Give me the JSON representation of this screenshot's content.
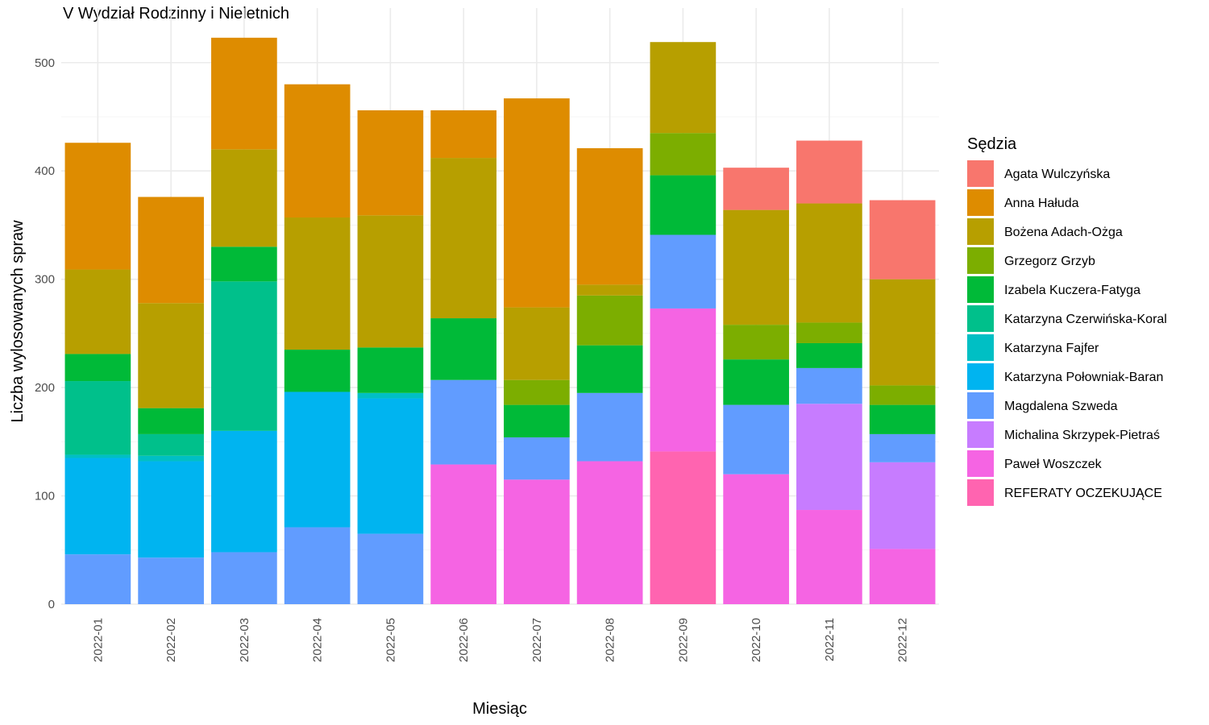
{
  "chart_data": {
    "type": "bar",
    "stacked": true,
    "title": "V Wydział Rodzinny i Nieletnich",
    "xlabel": "Miesiąc",
    "ylabel": "Liczba wylosowanych spraw",
    "ylim": [
      0,
      540
    ],
    "yticks": [
      0,
      100,
      200,
      300,
      400,
      500
    ],
    "grid": true,
    "legend_position": "right",
    "legend_title": "Sędzia",
    "categories": [
      "2022-01",
      "2022-02",
      "2022-03",
      "2022-04",
      "2022-05",
      "2022-06",
      "2022-07",
      "2022-08",
      "2022-09",
      "2022-10",
      "2022-11",
      "2022-12"
    ],
    "series": [
      {
        "name": "Agata Wulczyńska",
        "color": "#F8766D",
        "values": [
          0,
          0,
          0,
          0,
          0,
          0,
          0,
          0,
          0,
          39,
          58,
          73
        ]
      },
      {
        "name": "Anna Hałuda",
        "color": "#DE8C00",
        "values": [
          117,
          98,
          103,
          123,
          97,
          44,
          193,
          126,
          0,
          0,
          0,
          0
        ]
      },
      {
        "name": "Bożena Adach-Ożga",
        "color": "#B79F00",
        "values": [
          78,
          97,
          90,
          122,
          122,
          148,
          67,
          10,
          84,
          106,
          110,
          98
        ]
      },
      {
        "name": "Grzegorz Grzyb",
        "color": "#7CAE00",
        "values": [
          0,
          0,
          0,
          0,
          0,
          0,
          23,
          46,
          39,
          32,
          19,
          18
        ]
      },
      {
        "name": "Izabela Kuczera-Fatyga",
        "color": "#00BA38",
        "values": [
          25,
          24,
          32,
          39,
          42,
          57,
          30,
          44,
          55,
          42,
          23,
          27
        ]
      },
      {
        "name": "Katarzyna Czerwińska-Koral",
        "color": "#00C08B",
        "values": [
          68,
          20,
          138,
          0,
          0,
          0,
          0,
          0,
          0,
          0,
          0,
          0
        ]
      },
      {
        "name": "Katarzyna Fajfer",
        "color": "#00BFC4",
        "values": [
          3,
          5,
          0,
          0,
          5,
          0,
          0,
          0,
          0,
          0,
          0,
          0
        ]
      },
      {
        "name": "Katarzyna Połowniak-Baran",
        "color": "#00B4F0",
        "values": [
          89,
          89,
          112,
          125,
          125,
          0,
          0,
          0,
          0,
          0,
          0,
          0
        ]
      },
      {
        "name": "Magdalena Szweda",
        "color": "#619CFF",
        "values": [
          46,
          43,
          48,
          71,
          65,
          78,
          39,
          63,
          68,
          64,
          33,
          26
        ]
      },
      {
        "name": "Michalina Skrzypek-Pietraś",
        "color": "#C77CFF",
        "values": [
          0,
          0,
          0,
          0,
          0,
          0,
          0,
          0,
          0,
          0,
          98,
          80
        ]
      },
      {
        "name": "Paweł Woszczek",
        "color": "#F564E3",
        "values": [
          0,
          0,
          0,
          0,
          0,
          129,
          115,
          132,
          132,
          120,
          87,
          51
        ]
      },
      {
        "name": "REFERATY OCZEKUJĄCE",
        "color": "#FF64B0",
        "values": [
          0,
          0,
          0,
          0,
          0,
          0,
          0,
          0,
          141,
          0,
          0,
          0
        ]
      }
    ]
  }
}
